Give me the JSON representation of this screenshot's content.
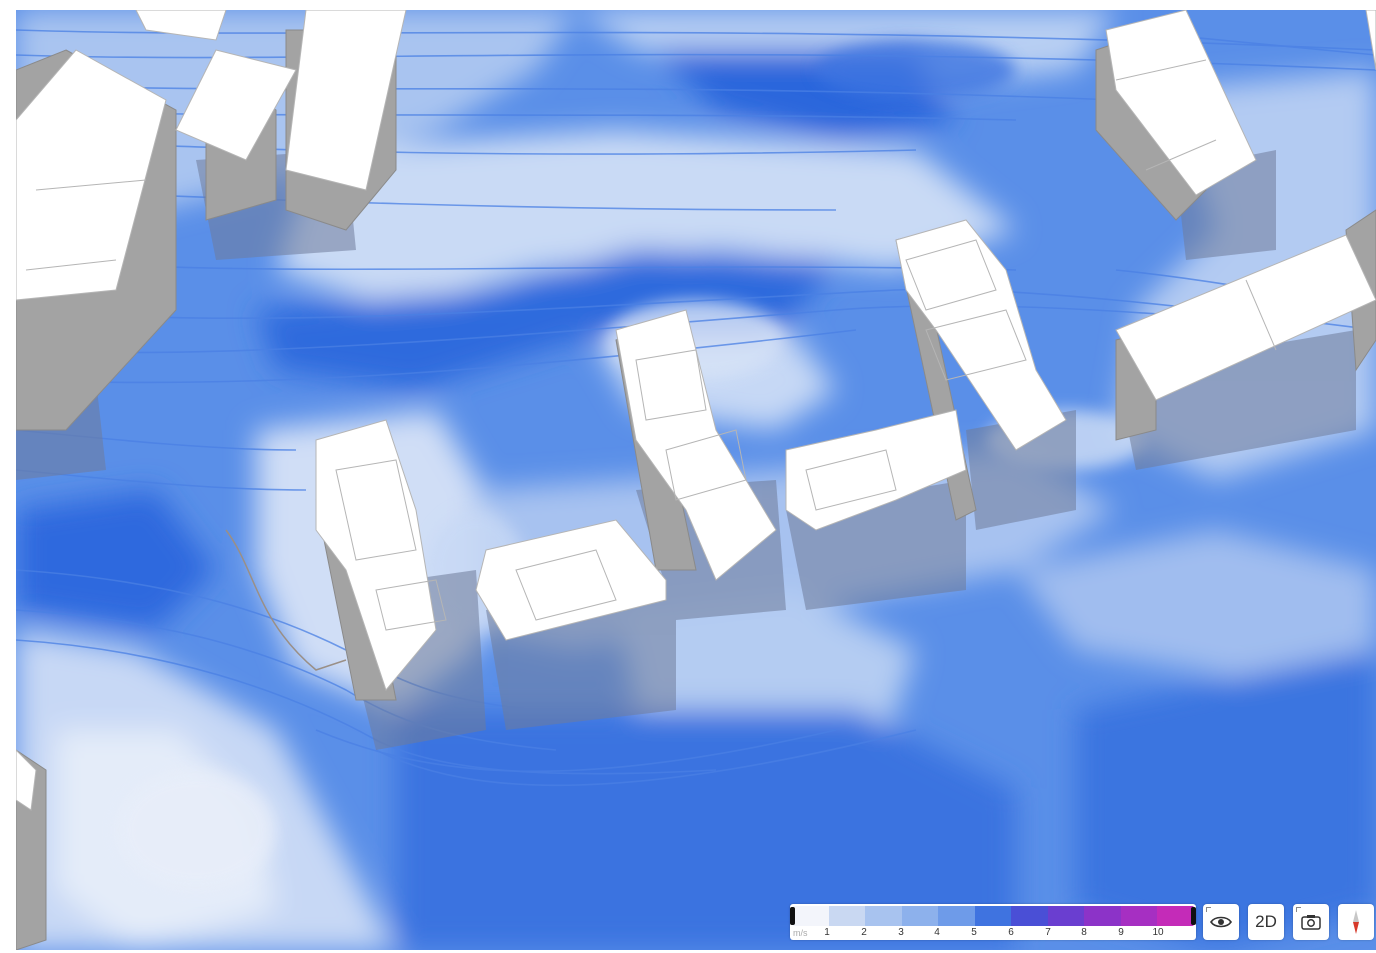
{
  "legend": {
    "unit": "m/s",
    "ticks": [
      "1",
      "2",
      "3",
      "4",
      "5",
      "6",
      "7",
      "8",
      "9",
      "10"
    ],
    "colors": [
      "#f3f5fb",
      "#c9d8f2",
      "#a8c3ef",
      "#8db1ec",
      "#6e9be9",
      "#3f73e0",
      "#4a4fd6",
      "#6a3ed0",
      "#8c33c8",
      "#a62fc2",
      "#c42bb8"
    ]
  },
  "controls": {
    "view_mode_label": "2D",
    "visibility_icon": "eye-icon",
    "screenshot_icon": "camera-icon",
    "compass_icon": "compass-icon"
  },
  "colors": {
    "ground_base": "#4f86e6",
    "wind_fast": "#3b72e0",
    "wind_medium": "#8fb2ee",
    "wind_slow": "#d6e2f6",
    "building_top": "#ffffff",
    "building_side": "#9d9d9d",
    "compass_needle": "#d63a2b"
  }
}
